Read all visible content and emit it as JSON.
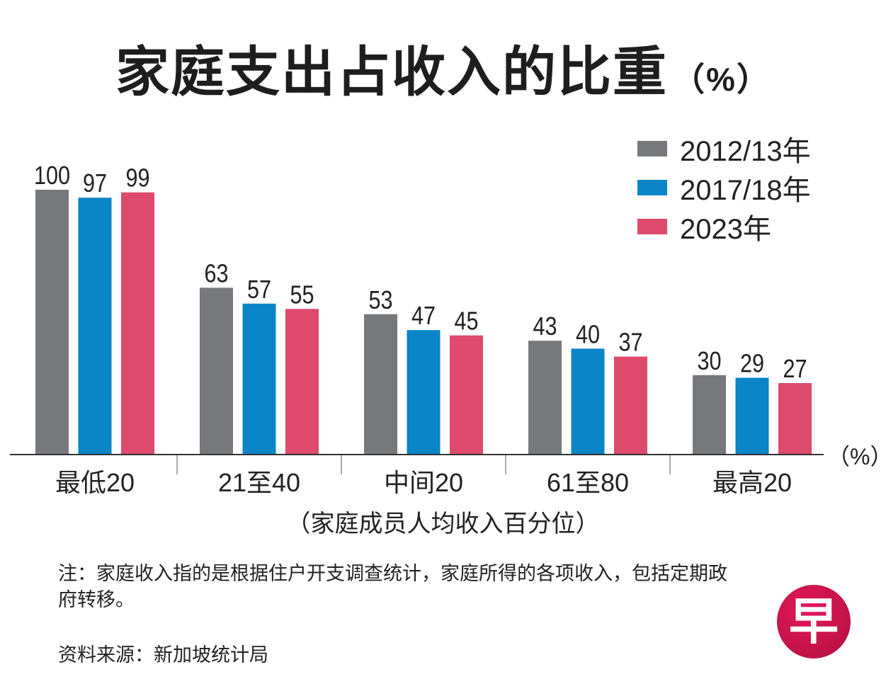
{
  "title": "家庭支出占收入的比重",
  "title_unit": "（%）",
  "unit_label": "（%）",
  "note": "注：家庭收入指的是根据住户开支调查统计，家庭所得的各项收入，包括定期政府转移。",
  "source": "资料来源：新加坡统计局",
  "logo_text": "早",
  "logo_color": "#c8164b",
  "chart_data": {
    "type": "bar",
    "title": "家庭支出占收入的比重（%）",
    "xlabel": "（家庭成员人均收入百分位）",
    "ylabel": "%",
    "categories": [
      "最低20",
      "21至40",
      "中间20",
      "61至80",
      "最高20"
    ],
    "series": [
      {
        "name": "2012/13年",
        "color": "#77787b",
        "values": [
          100,
          63,
          53,
          43,
          30
        ]
      },
      {
        "name": "2017/18年",
        "color": "#0a85c7",
        "values": [
          97,
          57,
          47,
          40,
          29
        ]
      },
      {
        "name": "2023年",
        "color": "#de4a6c",
        "values": [
          99,
          55,
          45,
          37,
          27
        ]
      }
    ],
    "ylim": [
      0,
      100
    ],
    "grid": false,
    "legend": "top-right",
    "data_labels": true
  }
}
